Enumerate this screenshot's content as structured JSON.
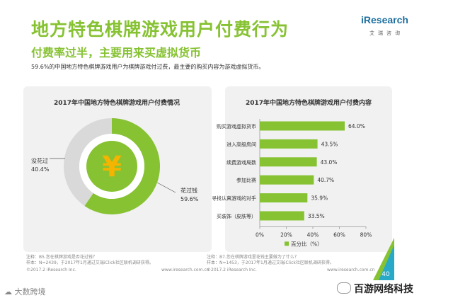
{
  "header": {
    "title": "地方特色棋牌游戏用户付费行为",
    "subtitle": "付费率过半，主要用来买虚拟货币",
    "description": "59.6%的中国地方特色棋牌游戏用户为棋牌游戏付过费，最主要的购买内容为游戏虚拟货币。"
  },
  "logo": {
    "text": "iResearch",
    "sub": "艾瑞咨询"
  },
  "chart_data": [
    {
      "type": "pie",
      "style": "donut",
      "title": "2017年中国地方特色棋牌游戏用户付费情况",
      "slices": [
        {
          "label": "花过钱",
          "value": 59.6,
          "value_label": "59.6%",
          "color": "#86c232"
        },
        {
          "label": "没花过",
          "value": 40.4,
          "value_label": "40.4%",
          "color": "#d9d9d9"
        }
      ],
      "center_symbol": "¥",
      "note": "注释：B5.您在棋牌游戏是否花过钱？",
      "sample": "样本：N=2439，于2017年1月通过艾瑞iClick社区联机调研获得。",
      "copyright": "©2017.2 iResearch Inc.",
      "site": "www.iresearch.com.cn"
    },
    {
      "type": "bar",
      "orientation": "horizontal",
      "title": "2017年中国地方特色棋牌游戏用户付费内容",
      "categories": [
        "购买游戏虚拟货币",
        "进入高级房间",
        "续费游戏局数",
        "参加比赛",
        "寻找认真游戏的对手",
        "买装饰（皮肤等）"
      ],
      "values": [
        64.0,
        43.5,
        43.0,
        40.7,
        35.9,
        33.5
      ],
      "value_labels": [
        "64.0%",
        "43.5%",
        "43.0%",
        "40.7%",
        "35.9%",
        "33.5%"
      ],
      "xlim": [
        0,
        80
      ],
      "xticks": [
        "0%",
        "20%",
        "40%",
        "60%",
        "80%"
      ],
      "series_name": "百分比（%）",
      "color": "#86c232",
      "note": "注释：B7.您在棋牌游戏里花钱主要做为了什么？",
      "sample": "样本：N=1453，于2017年1月通过艾瑞iClick社区联机调研获得。",
      "copyright": "©2017.2 iResearch Inc.",
      "site": "www.iresearch.com.cn"
    }
  ],
  "page_number": "40",
  "footer": {
    "left": "大数跨境",
    "right": "百游网络科技"
  }
}
